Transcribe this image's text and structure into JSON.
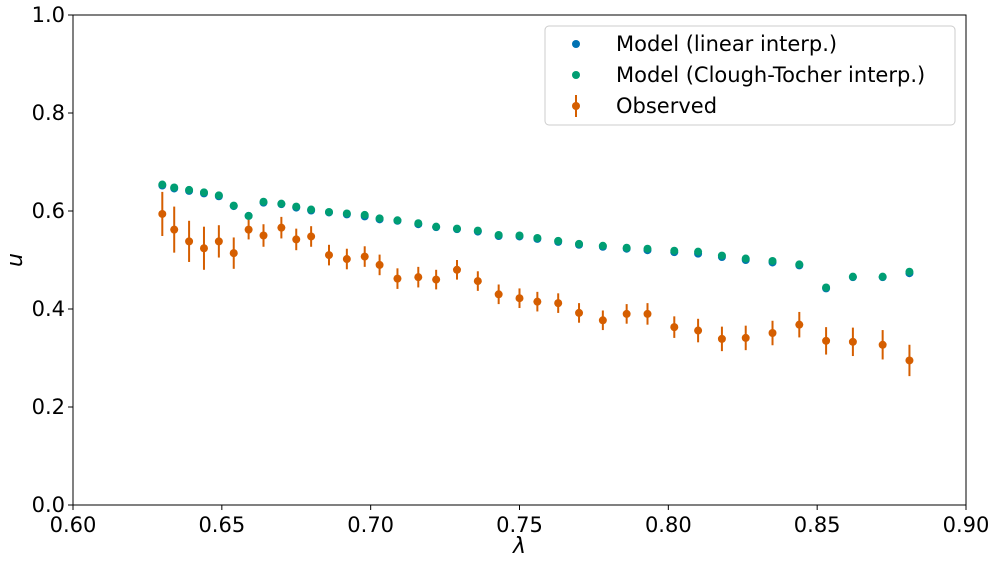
{
  "chart_data": {
    "type": "scatter",
    "xlabel": "λ",
    "ylabel": "u",
    "xlim": [
      0.6,
      0.9
    ],
    "ylim": [
      0.0,
      1.0
    ],
    "x_ticks": [
      "0.60",
      "0.65",
      "0.70",
      "0.75",
      "0.80",
      "0.85",
      "0.90"
    ],
    "y_ticks": [
      "0.0",
      "0.2",
      "0.4",
      "0.6",
      "0.8",
      "1.0"
    ],
    "legend_position": "top-right",
    "x": [
      0.63,
      0.634,
      0.639,
      0.644,
      0.649,
      0.654,
      0.659,
      0.664,
      0.67,
      0.675,
      0.68,
      0.686,
      0.692,
      0.698,
      0.703,
      0.709,
      0.716,
      0.722,
      0.729,
      0.736,
      0.743,
      0.75,
      0.756,
      0.763,
      0.77,
      0.778,
      0.786,
      0.793,
      0.802,
      0.81,
      0.818,
      0.826,
      0.835,
      0.844,
      0.853,
      0.862,
      0.872,
      0.881
    ],
    "series": [
      {
        "name": "Model (linear interp.)",
        "color": "#0072b2",
        "marker": "dot",
        "y": [
          0.652,
          0.646,
          0.641,
          0.636,
          0.63,
          0.61,
          0.59,
          0.617,
          0.614,
          0.607,
          0.601,
          0.597,
          0.593,
          0.589,
          0.583,
          0.58,
          0.573,
          0.567,
          0.563,
          0.558,
          0.549,
          0.548,
          0.543,
          0.537,
          0.531,
          0.527,
          0.523,
          0.52,
          0.516,
          0.513,
          0.506,
          0.5,
          0.495,
          0.489,
          0.442,
          0.465,
          0.465,
          0.473
        ]
      },
      {
        "name": "Model (Clough-Tocher interp.)",
        "color": "#009e73",
        "marker": "dot",
        "y": [
          0.654,
          0.648,
          0.643,
          0.638,
          0.632,
          0.611,
          0.59,
          0.619,
          0.615,
          0.609,
          0.603,
          0.598,
          0.595,
          0.592,
          0.585,
          0.581,
          0.575,
          0.568,
          0.564,
          0.56,
          0.551,
          0.55,
          0.545,
          0.539,
          0.533,
          0.529,
          0.525,
          0.523,
          0.519,
          0.517,
          0.509,
          0.503,
          0.498,
          0.491,
          0.444,
          0.466,
          0.466,
          0.476
        ]
      },
      {
        "name": "Observed",
        "color": "#d55e00",
        "marker": "errorbar",
        "y": [
          0.594,
          0.562,
          0.538,
          0.524,
          0.538,
          0.514,
          0.562,
          0.55,
          0.566,
          0.542,
          0.548,
          0.51,
          0.502,
          0.507,
          0.49,
          0.462,
          0.465,
          0.46,
          0.48,
          0.457,
          0.43,
          0.422,
          0.415,
          0.412,
          0.392,
          0.377,
          0.39,
          0.39,
          0.363,
          0.356,
          0.339,
          0.341,
          0.351,
          0.368,
          0.335,
          0.333,
          0.327,
          0.295
        ],
        "yerr": [
          0.045,
          0.047,
          0.042,
          0.044,
          0.033,
          0.032,
          0.02,
          0.023,
          0.022,
          0.022,
          0.021,
          0.021,
          0.021,
          0.021,
          0.021,
          0.021,
          0.021,
          0.02,
          0.02,
          0.02,
          0.02,
          0.02,
          0.02,
          0.02,
          0.02,
          0.02,
          0.02,
          0.022,
          0.022,
          0.024,
          0.025,
          0.025,
          0.025,
          0.026,
          0.028,
          0.029,
          0.03,
          0.032
        ]
      }
    ]
  }
}
